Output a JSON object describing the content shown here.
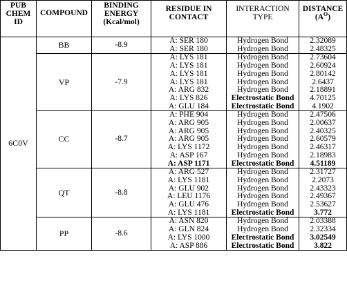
{
  "headers": {
    "pubchem": [
      "PUB",
      "CHEM",
      "ID"
    ],
    "compound": "COMPOUND",
    "binding": [
      "BINDING",
      "ENERGY",
      "(Kcal/mol)"
    ],
    "residue": [
      "RESIDUE IN",
      "CONTACT"
    ],
    "interaction": [
      "INTERACTION",
      "TYPE"
    ],
    "distance": [
      "DISTANCE",
      "(A",
      "O",
      ")"
    ]
  },
  "pubchem_id": "6C0V",
  "groups": [
    {
      "compound": "BB",
      "energy": "-8.9",
      "rows": [
        {
          "residue": "A: SER 180",
          "type": "Hydrogen Bond",
          "distance": "2.32089"
        },
        {
          "residue": "A: SER 180",
          "type": "Hydrogen Bond",
          "distance": "2.48325"
        }
      ]
    },
    {
      "compound": "VP",
      "energy": "-7.9",
      "rows": [
        {
          "residue": "A: LYS 181",
          "type": "Hydrogen Bond",
          "distance": "2.73604"
        },
        {
          "residue": "A: LYS 181",
          "type": "Hydrogen Bond",
          "distance": "2.60924"
        },
        {
          "residue": "A: LYS 181",
          "type": "Hydrogen Bond",
          "distance": "2.80142"
        },
        {
          "residue": "A: LYS 181",
          "type": "Hydrogen Bond",
          "distance": "2.6437"
        },
        {
          "residue": "A: ARG 832",
          "type": "Hydrogen Bond",
          "distance": "2.18891"
        },
        {
          "residue": "A: LYS 826",
          "type": "Electrostatic Bond",
          "distance": "4.70125"
        },
        {
          "residue": "A: GLU 184",
          "type": "Electrostatic Bond",
          "distance": "4.1902"
        }
      ]
    },
    {
      "compound": "CC",
      "energy": "-8.7",
      "rows": [
        {
          "residue": "A: PHE 904",
          "type": "Hydrogen Bond",
          "distance": "2.47506"
        },
        {
          "residue": "A: ARG 905",
          "type": "Hydrogen Bond",
          "distance": "2.00637"
        },
        {
          "residue": "A: ARG 905",
          "type": "Hydrogen Bond",
          "distance": "2.40325"
        },
        {
          "residue": "A: ARG 905",
          "type": "Hydrogen Bond",
          "distance": "2.60579"
        },
        {
          "residue": "A: LYS 1172",
          "type": "Hydrogen Bond",
          "distance": "2.46317"
        },
        {
          "residue": "A: ASP 167",
          "type": "Hydrogen Bond",
          "distance": "2.18983"
        },
        {
          "residue": "A: ASP 1171",
          "type": "Electrostatic Bond",
          "distance": "4.51189"
        }
      ]
    },
    {
      "compound": "QT",
      "energy": "-8.8",
      "rows": [
        {
          "residue": "A: ARG 527",
          "type": "Hydrogen Bond",
          "distance": "2.31727"
        },
        {
          "residue": "A: LYS 1181",
          "type": "Hydrogen Bond",
          "distance": "2.2073"
        },
        {
          "residue": "A: GLU 902",
          "type": "Hydrogen Bond",
          "distance": "2.43323"
        },
        {
          "residue": "A: LEU 1176",
          "type": "Hydrogen Bond",
          "distance": "2.49367"
        },
        {
          "residue": "A: GLU 476",
          "type": "Hydrogen Bond",
          "distance": "2.53627"
        },
        {
          "residue": "A: LYS 1181",
          "type": "Electrostatic Bond",
          "distance": "3.772"
        }
      ]
    },
    {
      "compound": "PP",
      "energy": "-8.6",
      "rows": [
        {
          "residue": "A: ASN 820",
          "type": "Hydrogen Bond",
          "distance": "2.03388"
        },
        {
          "residue": "A: GLN 824",
          "type": "Hydrogen Bond",
          "distance": "2.32334"
        },
        {
          "residue": "A: LYS 1000",
          "type": "Electrostatic Bond",
          "distance": "3.02549"
        },
        {
          "residue": "A: ASP 886",
          "type": "Electrostatic Bond",
          "distance": "3.822"
        }
      ]
    }
  ],
  "bold_cells": {
    "vp_types": [
      5,
      6
    ],
    "cc_row_all_bold": 6,
    "qt_types_and_distance": 5,
    "pp_types_and_distance": [
      2,
      3
    ]
  }
}
